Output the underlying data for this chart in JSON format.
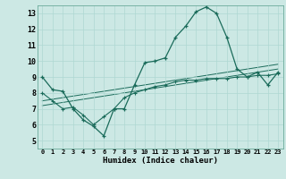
{
  "xlabel": "Humidex (Indice chaleur)",
  "bg_color": "#cce8e4",
  "line_color": "#1a6b5a",
  "x_ticks": [
    0,
    1,
    2,
    3,
    4,
    5,
    6,
    7,
    8,
    9,
    10,
    11,
    12,
    13,
    14,
    15,
    16,
    17,
    18,
    19,
    20,
    21,
    22,
    23
  ],
  "y_ticks": [
    5,
    6,
    7,
    8,
    9,
    10,
    11,
    12,
    13
  ],
  "ylim": [
    4.5,
    13.5
  ],
  "xlim": [
    -0.5,
    23.5
  ],
  "series1_x": [
    0,
    1,
    2,
    3,
    4,
    5,
    6,
    7,
    8,
    9,
    10,
    11,
    12,
    13,
    14,
    15,
    16,
    17,
    18,
    19,
    20,
    21,
    22,
    23
  ],
  "series1_y": [
    9.0,
    8.2,
    8.1,
    7.0,
    6.3,
    5.9,
    5.3,
    7.0,
    7.0,
    8.5,
    9.9,
    10.0,
    10.2,
    11.5,
    12.2,
    13.1,
    13.4,
    13.0,
    11.5,
    9.5,
    9.0,
    9.3,
    8.5,
    9.3
  ],
  "series2_x": [
    0,
    1,
    2,
    3,
    4,
    5,
    6,
    7,
    8,
    9,
    10,
    11,
    12,
    13,
    14,
    15,
    16,
    17,
    18,
    19,
    20,
    21,
    22,
    23
  ],
  "series2_y": [
    8.0,
    7.5,
    7.0,
    7.1,
    6.6,
    6.0,
    6.5,
    7.0,
    7.7,
    8.0,
    8.2,
    8.4,
    8.5,
    8.7,
    8.8,
    8.8,
    8.9,
    8.9,
    8.9,
    9.0,
    9.0,
    9.1,
    9.1,
    9.2
  ],
  "series3_x": [
    0,
    23
  ],
  "series3_y": [
    7.5,
    9.8
  ],
  "series4_x": [
    0,
    23
  ],
  "series4_y": [
    7.2,
    9.5
  ],
  "grid_color": "#aed8d2",
  "spine_color": "#6aaa9a"
}
